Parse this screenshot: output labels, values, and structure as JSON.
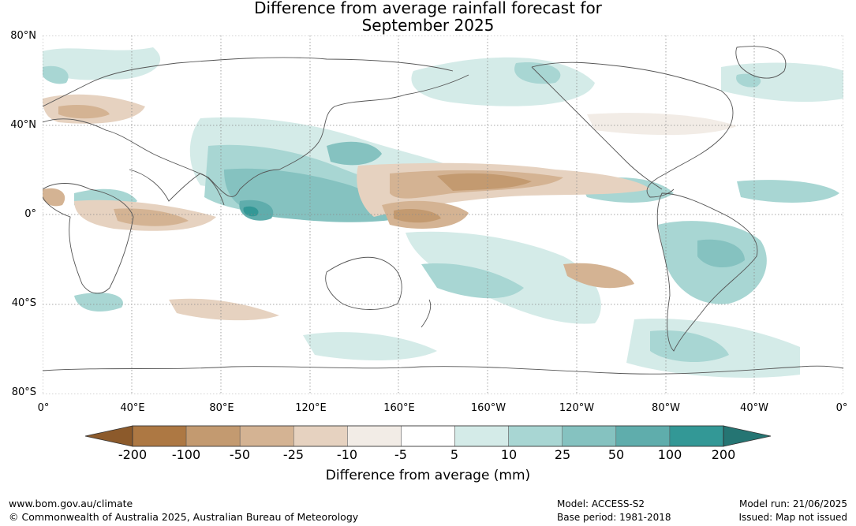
{
  "header": {
    "title_line1": "Difference from average rainfall forecast for",
    "title_line2": "September 2025"
  },
  "map": {
    "lat_labels": [
      "80°N",
      "40°N",
      "0°",
      "40°S",
      "80°S"
    ],
    "lon_labels": [
      "0°",
      "40°E",
      "80°E",
      "120°E",
      "160°E",
      "160°W",
      "120°W",
      "80°W",
      "40°W",
      "0°"
    ]
  },
  "colorbar": {
    "tick_labels": [
      "-200",
      "-100",
      "-50",
      "-25",
      "-10",
      "-5",
      "5",
      "10",
      "25",
      "50",
      "100",
      "200"
    ],
    "colors": [
      "#8c5a2b",
      "#ad7843",
      "#c39a70",
      "#d4b393",
      "#e6d2c0",
      "#f2ece6",
      "#ffffff",
      "#d4ebe8",
      "#a8d6d3",
      "#85c2c0",
      "#5fadac",
      "#339896",
      "#257573"
    ],
    "label": "Difference from average (mm)"
  },
  "footer": {
    "website": "www.bom.gov.au/climate",
    "copyright": "© Commonwealth of Australia 2025, Australian Bureau of Meteorology",
    "model": "Model: ACCESS-S2",
    "base_period": "Base period: 1981-2018",
    "model_run": "Model run: 21/06/2025",
    "issued": "Issued: Map not issued"
  }
}
